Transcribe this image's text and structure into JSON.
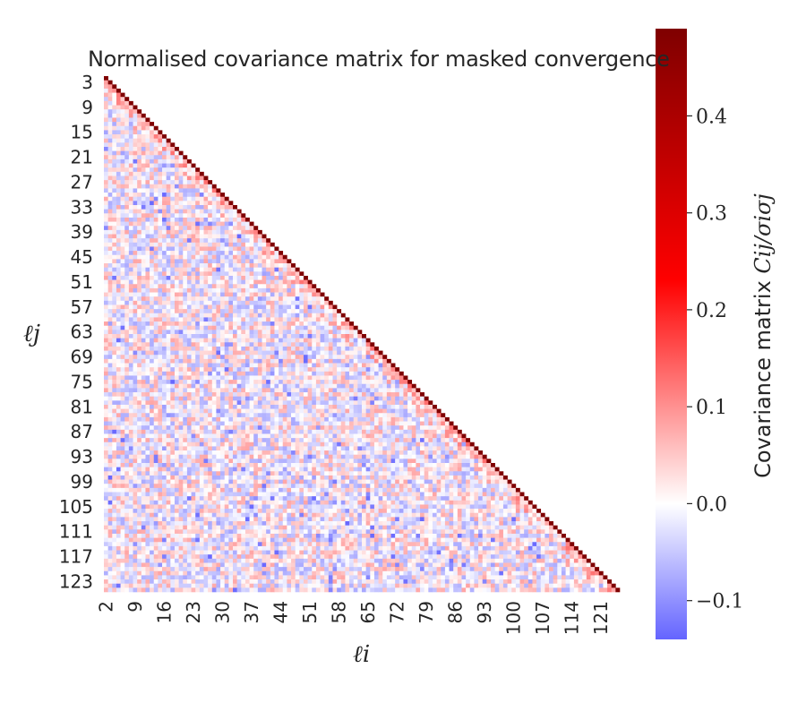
{
  "chart_data": {
    "type": "heatmap",
    "title": "Normalised covariance matrix for masked convergence",
    "xlabel": "ℓi",
    "ylabel": "ℓj",
    "mask": "upper triangle above diagonal hidden (lower-triangular display)",
    "matrix_size": 124,
    "x_tick_labels": [
      "2",
      "9",
      "16",
      "23",
      "30",
      "37",
      "44",
      "51",
      "58",
      "65",
      "72",
      "79",
      "86",
      "93",
      "100",
      "107",
      "114",
      "121"
    ],
    "y_tick_labels": [
      "3",
      "9",
      "15",
      "21",
      "27",
      "33",
      "39",
      "45",
      "51",
      "57",
      "63",
      "69",
      "75",
      "81",
      "87",
      "93",
      "99",
      "105",
      "111",
      "117",
      "123"
    ],
    "diagonal_value": 0.49,
    "off_diagonal_range": [
      -0.14,
      0.15
    ],
    "colorbar": {
      "label_text": "Covariance matrix ",
      "label_math": "Cij/σiσj",
      "range": [
        -0.14,
        0.49
      ],
      "ticks": [
        "−0.1",
        "0.0",
        "0.1",
        "0.2",
        "0.3",
        "0.4"
      ],
      "tick_values": [
        -0.1,
        0.0,
        0.1,
        0.2,
        0.3,
        0.4
      ],
      "colormap": "seismic",
      "stops": [
        "#6464ff",
        "#ffffff",
        "#ff0000",
        "#7f0000"
      ]
    },
    "grid": false
  }
}
